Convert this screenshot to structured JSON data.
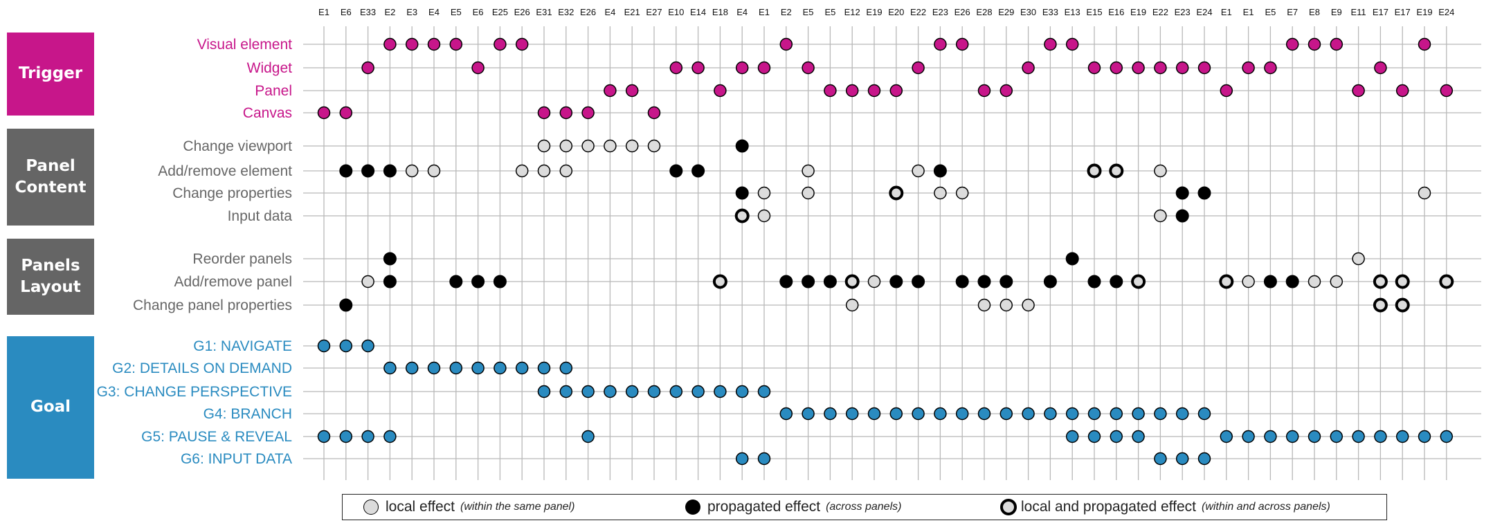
{
  "columns": [
    "E1",
    "E6",
    "E33",
    "E2",
    "E3",
    "E4",
    "E5",
    "E6",
    "E25",
    "E26",
    "E31",
    "E32",
    "E26",
    "E4",
    "E21",
    "E27",
    "E10",
    "E14",
    "E18",
    "E4",
    "E1",
    "E2",
    "E5",
    "E5",
    "E12",
    "E19",
    "E20",
    "E22",
    "E23",
    "E26",
    "E28",
    "E29",
    "E30",
    "E33",
    "E13",
    "E15",
    "E16",
    "E19",
    "E22",
    "E23",
    "E24",
    "E1",
    "E1",
    "E5",
    "E7",
    "E8",
    "E9",
    "E11",
    "E17",
    "E17",
    "E19",
    "E24"
  ],
  "categories": [
    {
      "id": "trigger",
      "label": "Trigger",
      "color": "#c7168a"
    },
    {
      "id": "content",
      "label": "Panel\nContent",
      "color": "#656565"
    },
    {
      "id": "layout",
      "label": "Panels\nLayout",
      "color": "#656565"
    },
    {
      "id": "goal",
      "label": "Goal",
      "color": "#2a8bc0"
    }
  ],
  "colors": {
    "trigger": "#c7168a",
    "effect_text": "#666666",
    "goal": "#2a8bc0",
    "local_fill": "#dcdcdc",
    "propagated_fill": "#000000"
  },
  "rows": [
    {
      "label": "Visual element",
      "group": "trigger",
      "dots": [
        3,
        4,
        5,
        6,
        8,
        9,
        21,
        28,
        29,
        33,
        34,
        44,
        45,
        46,
        50
      ]
    },
    {
      "label": "Widget",
      "group": "trigger",
      "dots": [
        2,
        7,
        16,
        17,
        19,
        20,
        22,
        27,
        32,
        35,
        36,
        37,
        38,
        39,
        40,
        42,
        43,
        48
      ]
    },
    {
      "label": "Panel",
      "group": "trigger",
      "dots": [
        13,
        14,
        18,
        23,
        24,
        25,
        26,
        30,
        31,
        41,
        47,
        49,
        51
      ]
    },
    {
      "label": "Canvas",
      "group": "trigger",
      "dots": [
        0,
        1,
        10,
        11,
        12,
        15
      ]
    },
    {
      "label": "Change viewport",
      "group": "content",
      "dots": [
        [
          10,
          "l"
        ],
        [
          11,
          "l"
        ],
        [
          12,
          "l"
        ],
        [
          13,
          "l"
        ],
        [
          14,
          "l"
        ],
        [
          15,
          "l"
        ],
        [
          19,
          "p"
        ]
      ]
    },
    {
      "label": "Add/remove element",
      "group": "content",
      "dots": [
        [
          1,
          "p"
        ],
        [
          2,
          "p"
        ],
        [
          3,
          "p"
        ],
        [
          4,
          "l"
        ],
        [
          5,
          "l"
        ],
        [
          9,
          "l"
        ],
        [
          10,
          "l"
        ],
        [
          11,
          "l"
        ],
        [
          16,
          "p"
        ],
        [
          17,
          "p"
        ],
        [
          22,
          "l"
        ],
        [
          27,
          "l"
        ],
        [
          28,
          "p"
        ],
        [
          35,
          "b"
        ],
        [
          36,
          "b"
        ],
        [
          38,
          "l"
        ]
      ]
    },
    {
      "label": "Change properties",
      "group": "content",
      "dots": [
        [
          19,
          "p"
        ],
        [
          20,
          "l"
        ],
        [
          22,
          "l"
        ],
        [
          26,
          "b"
        ],
        [
          28,
          "l"
        ],
        [
          29,
          "l"
        ],
        [
          39,
          "p"
        ],
        [
          40,
          "p"
        ],
        [
          50,
          "l"
        ]
      ]
    },
    {
      "label": "Input data",
      "group": "content",
      "dots": [
        [
          19,
          "b"
        ],
        [
          20,
          "l"
        ],
        [
          38,
          "l"
        ],
        [
          39,
          "p"
        ]
      ]
    },
    {
      "label": "Reorder panels",
      "group": "layout",
      "dots": [
        [
          3,
          "p"
        ],
        [
          34,
          "p"
        ],
        [
          47,
          "l"
        ]
      ]
    },
    {
      "label": "Add/remove panel",
      "group": "layout",
      "dots": [
        [
          2,
          "l"
        ],
        [
          3,
          "p"
        ],
        [
          6,
          "p"
        ],
        [
          7,
          "p"
        ],
        [
          8,
          "p"
        ],
        [
          18,
          "b"
        ],
        [
          21,
          "p"
        ],
        [
          22,
          "p"
        ],
        [
          23,
          "p"
        ],
        [
          24,
          "b"
        ],
        [
          25,
          "l"
        ],
        [
          26,
          "p"
        ],
        [
          27,
          "p"
        ],
        [
          29,
          "p"
        ],
        [
          30,
          "p"
        ],
        [
          31,
          "p"
        ],
        [
          33,
          "p"
        ],
        [
          35,
          "p"
        ],
        [
          36,
          "p"
        ],
        [
          37,
          "b"
        ],
        [
          41,
          "b"
        ],
        [
          42,
          "l"
        ],
        [
          43,
          "p"
        ],
        [
          44,
          "p"
        ],
        [
          45,
          "l"
        ],
        [
          46,
          "l"
        ],
        [
          48,
          "b"
        ],
        [
          49,
          "b"
        ],
        [
          51,
          "b"
        ]
      ]
    },
    {
      "label": "Change panel properties",
      "group": "layout",
      "dots": [
        [
          1,
          "p"
        ],
        [
          24,
          "l"
        ],
        [
          30,
          "l"
        ],
        [
          31,
          "l"
        ],
        [
          32,
          "l"
        ],
        [
          48,
          "b"
        ],
        [
          49,
          "b"
        ]
      ]
    },
    {
      "label": "G1: NAVIGATE",
      "group": "goal",
      "dots": [
        0,
        1,
        2
      ]
    },
    {
      "label": "G2: DETAILS ON DEMAND",
      "group": "goal",
      "dots": [
        3,
        4,
        5,
        6,
        7,
        8,
        9,
        10,
        11
      ]
    },
    {
      "label": "G3: CHANGE PERSPECTIVE",
      "group": "goal",
      "dots": [
        10,
        11,
        12,
        13,
        14,
        15,
        16,
        17,
        18,
        19,
        20
      ]
    },
    {
      "label": "G4: BRANCH",
      "group": "goal",
      "dots": [
        21,
        22,
        23,
        24,
        25,
        26,
        27,
        28,
        29,
        30,
        31,
        32,
        33,
        34,
        35,
        36,
        37,
        38,
        39,
        40
      ]
    },
    {
      "label": "G5: PAUSE & REVEAL",
      "group": "goal",
      "dots": [
        0,
        1,
        2,
        3,
        12,
        34,
        35,
        36,
        37,
        41,
        42,
        43,
        44,
        45,
        46,
        47,
        48,
        49,
        50,
        51
      ]
    },
    {
      "label": "G6: INPUT DATA",
      "group": "goal",
      "dots": [
        19,
        20,
        38,
        39,
        40
      ]
    }
  ],
  "legend": [
    {
      "type": "local",
      "label": "local effect",
      "note": "(within the same panel)"
    },
    {
      "type": "propagated",
      "label": "propagated effect",
      "note": "(across panels)"
    },
    {
      "type": "both",
      "label": "local and propagated effect",
      "note": "(within and across panels)"
    }
  ]
}
